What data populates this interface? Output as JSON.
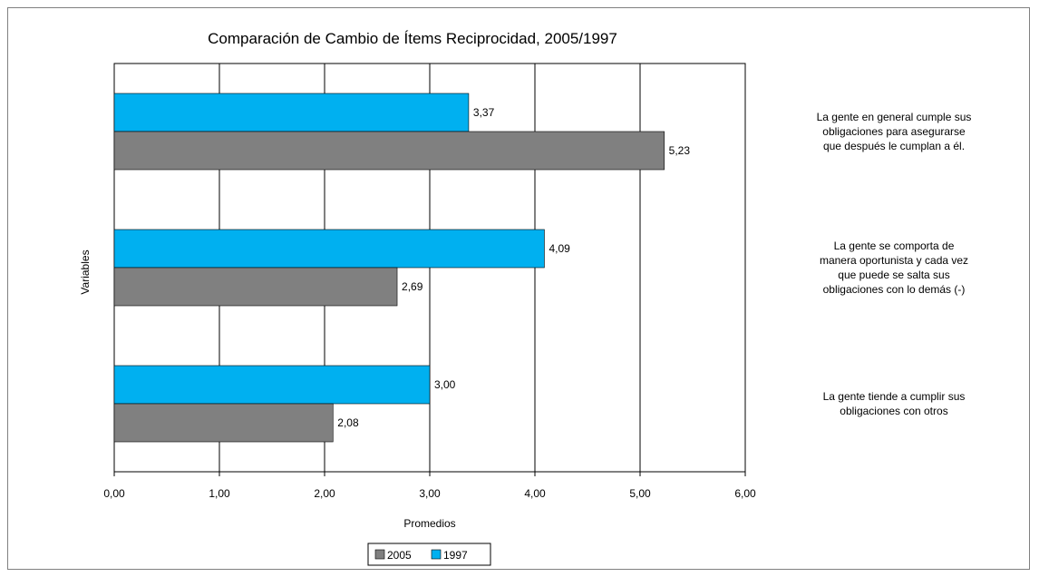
{
  "chart_data": {
    "type": "bar",
    "orientation": "horizontal",
    "title": "Comparación de Cambio de Ítems Reciprocidad, 2005/1997",
    "xlabel": "Promedios",
    "ylabel": "Variables",
    "xlim": [
      0,
      6
    ],
    "x_ticks": [
      "0,00",
      "1,00",
      "2,00",
      "3,00",
      "4,00",
      "5,00",
      "6,00"
    ],
    "grid": "vertical",
    "legend_position": "bottom",
    "categories": [
      "La gente en general cumple sus obligaciones para asegurarse que después le cumplan a él.",
      "La gente se comporta de manera oportunista y cada vez que puede se salta sus obligaciones con lo demás (-)",
      "La gente tiende a cumplir sus obligaciones con otros"
    ],
    "category_lines": [
      [
        "La gente en general cumple sus",
        "obligaciones para asegurarse",
        "que después le cumplan a él."
      ],
      [
        "La gente se comporta de",
        "manera oportunista y cada vez",
        "que puede se salta sus",
        "obligaciones con lo demás (-)"
      ],
      [
        "La gente tiende a cumplir sus",
        "obligaciones con otros"
      ]
    ],
    "series": [
      {
        "name": "1997",
        "color": "#00b0f0",
        "values": [
          3.37,
          4.09,
          3.0
        ],
        "labels": [
          "3,37",
          "4,09",
          "3,00"
        ]
      },
      {
        "name": "2005",
        "color": "#808080",
        "values": [
          5.23,
          2.69,
          2.08
        ],
        "labels": [
          "5,23",
          "2,69",
          "2,08"
        ]
      }
    ],
    "legend_order": [
      "2005",
      "1997"
    ]
  }
}
